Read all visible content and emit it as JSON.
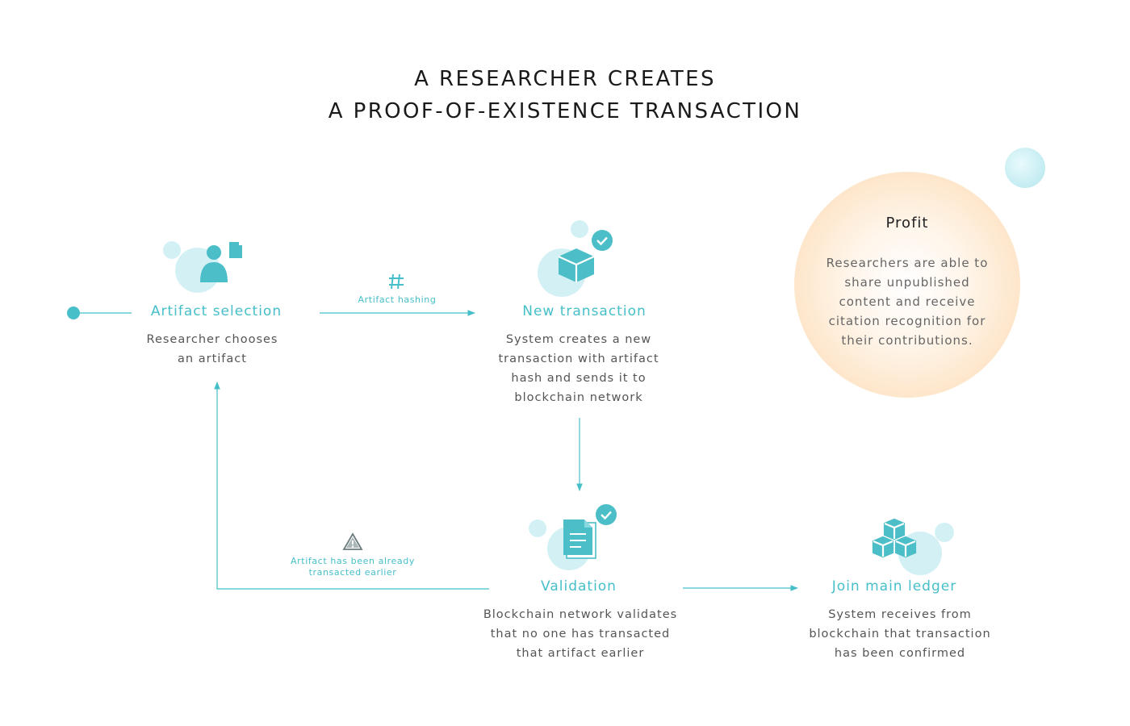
{
  "header": {
    "title_line1": "A RESEARCHER CREATES",
    "title_line2": "A PROOF-OF-EXISTENCE TRANSACTION"
  },
  "steps": {
    "artifact_selection": {
      "title": "Artifact selection",
      "desc": [
        "Researcher chooses",
        "an artifact"
      ]
    },
    "new_transaction": {
      "title": "New transaction",
      "desc": [
        "System creates a new",
        "transaction with artifact",
        "hash and sends it to",
        "blockchain network"
      ]
    },
    "validation": {
      "title": "Validation",
      "desc": [
        "Blockchain network validates",
        "that no one has transacted",
        "that artifact earlier"
      ]
    },
    "join_ledger": {
      "title": "Join main ledger",
      "desc": [
        "System receives from",
        "blockchain that transaction",
        "has been confirmed"
      ]
    }
  },
  "edges": {
    "hashing_label": "Artifact hashing",
    "already_label": [
      "Artifact has been already",
      "transacted earlier"
    ]
  },
  "profit": {
    "title": "Profit",
    "text": [
      "Researchers are able to",
      "share unpublished",
      "content and receive",
      "citation recognition for",
      "their contributions."
    ]
  },
  "icons": {
    "person": "person-icon",
    "document": "document-icon",
    "hash": "hash-icon",
    "cube": "cube-icon",
    "check": "check-icon",
    "warning": "warning-icon",
    "blocks": "blocks-icon"
  },
  "colors": {
    "accent": "#46bfc9",
    "bubble": "#d3f1f5",
    "text": "#555555",
    "profit": "#fde4c6"
  }
}
